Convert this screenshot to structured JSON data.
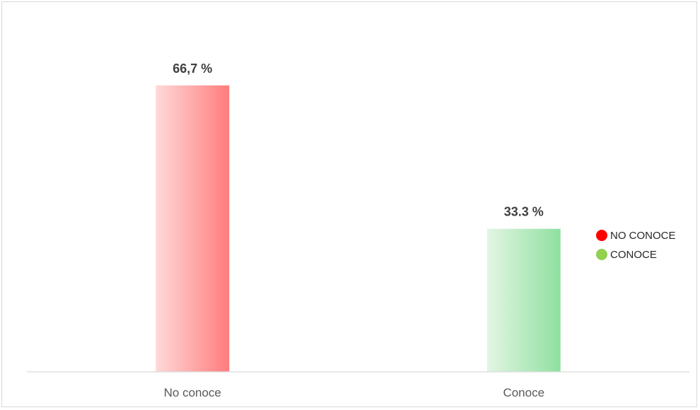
{
  "chart_data": {
    "type": "bar",
    "categories": [
      "No conoce",
      "Conoce"
    ],
    "values": [
      66.7,
      33.3
    ],
    "value_labels": [
      "66,7 %",
      "33.3 %"
    ],
    "ylim": [
      0,
      80
    ],
    "grid": false,
    "legend": {
      "placement": "right",
      "entries": [
        {
          "label": "NO CONOCE",
          "color": "#ff0000"
        },
        {
          "label": "CONOCE",
          "color": "#92d050"
        }
      ]
    },
    "bar_gradients": [
      {
        "light": "#ffd9d9",
        "dark": "#ff7c7c"
      },
      {
        "light": "#e3f5e3",
        "dark": "#8fe0a0"
      }
    ]
  }
}
